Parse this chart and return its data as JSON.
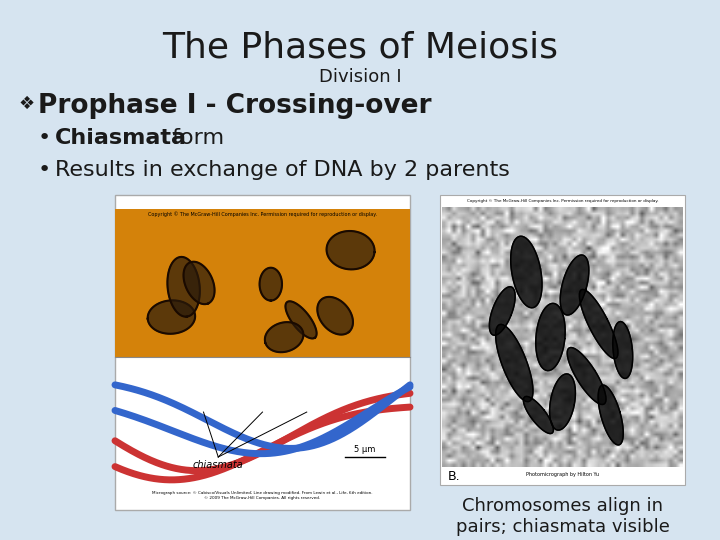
{
  "bg_color": "#d6e4f0",
  "title": "The Phases of Meiosis",
  "subtitle": "Division I",
  "title_fontsize": 26,
  "subtitle_fontsize": 13,
  "title_color": "#1a1a1a",
  "bullet_header": "Prophase I - Crossing-over",
  "bullet_header_fontsize": 19,
  "bullet_header_color": "#1a1a1a",
  "bullet_symbol": "❖",
  "bullet_fontsize": 16,
  "caption_text": "Chromosomes align in\npairs; chiasmata visible",
  "caption_fontsize": 13,
  "caption_color": "#1a1a1a",
  "left_img_bg_top": "#d4820a",
  "left_img_bg_bot": "#ffffff",
  "right_img_bg": "#e0e0e0"
}
